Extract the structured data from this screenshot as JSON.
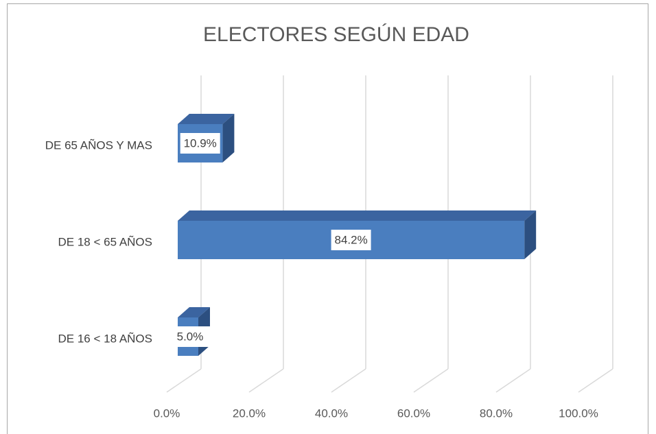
{
  "chart_data": {
    "type": "bar3d_horizontal",
    "title": "ELECTORES SEGÚN EDAD",
    "categories": [
      "DE 16 < 18 AÑOS",
      "DE 18 < 65 AÑOS",
      "DE 65 AÑOS Y MAS"
    ],
    "values": [
      5.0,
      84.2,
      10.9
    ],
    "value_labels": [
      "5.0%",
      "84.2%",
      "10.9%"
    ],
    "color": "#4a7ebf",
    "xlim": [
      0,
      100
    ],
    "xticks": [
      {
        "value": 0,
        "label": "0.0%"
      },
      {
        "value": 20,
        "label": "20.0%"
      },
      {
        "value": 40,
        "label": "40.0%"
      },
      {
        "value": 60,
        "label": "60.0%"
      },
      {
        "value": 80,
        "label": "80.0%"
      },
      {
        "value": 100,
        "label": "100.0%"
      }
    ],
    "grid": true
  }
}
